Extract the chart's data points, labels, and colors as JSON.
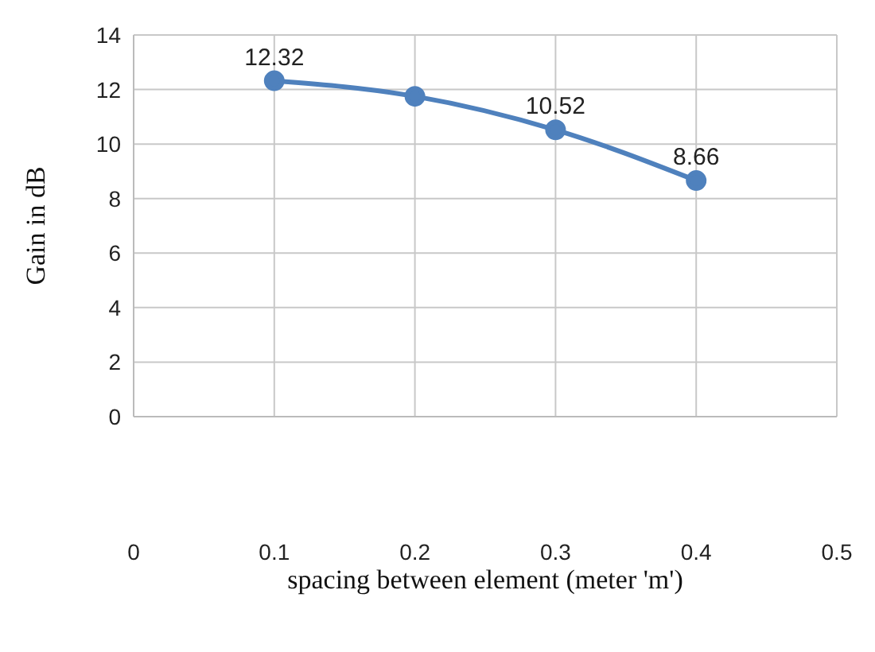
{
  "chart_data": {
    "type": "line",
    "xlabel": "spacing between element (meter 'm')",
    "ylabel": "Gain in dB",
    "x": [
      0.1,
      0.2,
      0.3,
      0.4
    ],
    "series": [
      {
        "color": "#4f81bd",
        "values": [
          12.32,
          11.75,
          10.52,
          8.66
        ],
        "value_labels": [
          "12.32",
          null,
          "10.52",
          "8.66"
        ]
      }
    ],
    "xlim": [
      0,
      0.5
    ],
    "xticks": [
      0,
      0.1,
      0.2,
      0.3,
      0.4,
      0.5
    ],
    "ylim": [
      0,
      14
    ],
    "yticks": [
      0,
      2,
      4,
      6,
      8,
      10,
      12,
      14
    ],
    "grid": true,
    "marker": "circle",
    "line_style": "solid",
    "legend": false
  }
}
